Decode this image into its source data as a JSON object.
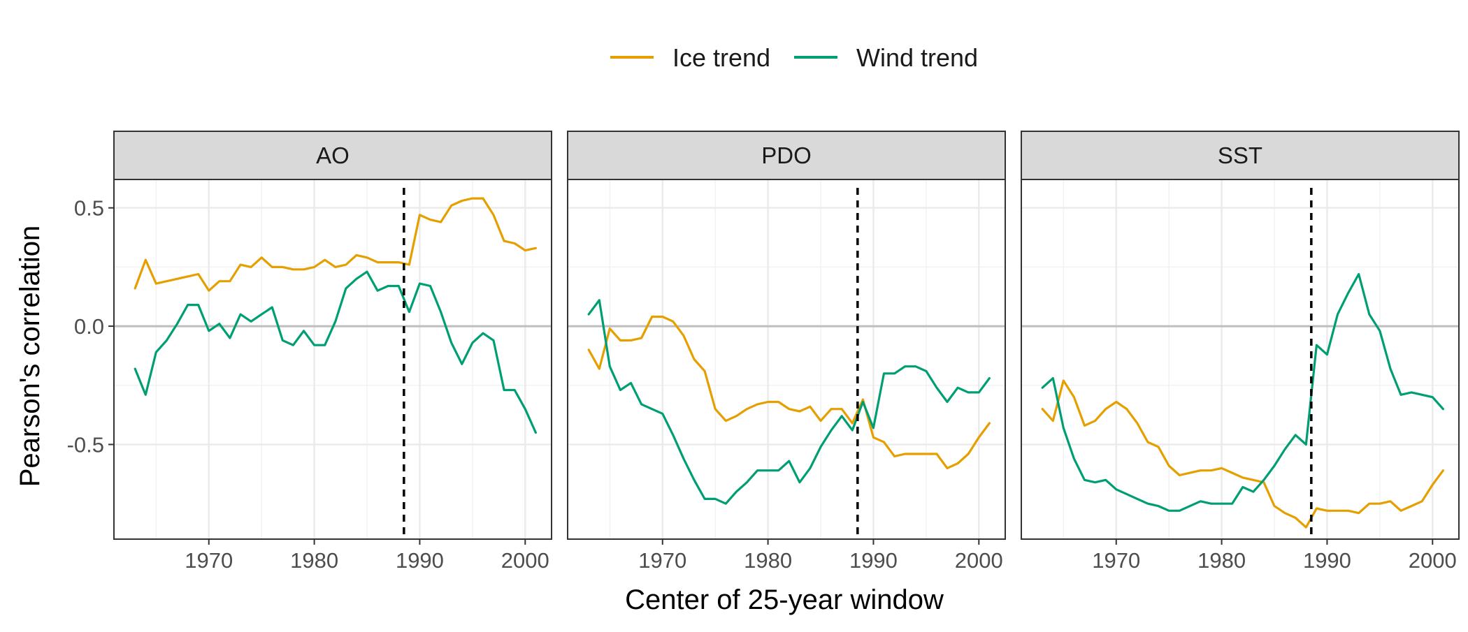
{
  "chart_data": {
    "type": "line",
    "xlabel": "Center of 25-year window",
    "ylabel": "Pearson's correlation",
    "xlim": [
      1961,
      2002.5
    ],
    "ylim": [
      -0.9,
      0.62
    ],
    "x_ticks": [
      1970,
      1980,
      1990,
      2000
    ],
    "x_tick_labels": [
      "1970",
      "1980",
      "1990",
      "2000"
    ],
    "y_ticks": [
      0.5,
      0.0,
      -0.5
    ],
    "y_tick_labels": [
      "0.5",
      "0.0",
      "-0.5"
    ],
    "reference_line_y": 0.0,
    "vertical_marker_x": 1988.5,
    "grid": true,
    "legend_position": "top",
    "legend": [
      {
        "name": "Ice trend",
        "color": "#E69F00"
      },
      {
        "name": "Wind trend",
        "color": "#009E73"
      }
    ],
    "panels": [
      {
        "title": "AO",
        "series": [
          {
            "name": "Ice trend",
            "color": "#E69F00",
            "x": [
              1963,
              1964,
              1965,
              1966,
              1967,
              1968,
              1969,
              1970,
              1971,
              1972,
              1973,
              1974,
              1975,
              1976,
              1977,
              1978,
              1979,
              1980,
              1981,
              1982,
              1983,
              1984,
              1985,
              1986,
              1987,
              1988,
              1989,
              1990,
              1991,
              1992,
              1993,
              1994,
              1995,
              1996,
              1997,
              1998,
              1999,
              2000,
              2001
            ],
            "y": [
              0.16,
              0.28,
              0.18,
              0.19,
              0.2,
              0.21,
              0.22,
              0.15,
              0.19,
              0.19,
              0.26,
              0.25,
              0.29,
              0.25,
              0.25,
              0.24,
              0.24,
              0.25,
              0.28,
              0.25,
              0.26,
              0.3,
              0.29,
              0.27,
              0.27,
              0.27,
              0.26,
              0.47,
              0.45,
              0.44,
              0.51,
              0.53,
              0.54,
              0.54,
              0.47,
              0.36,
              0.35,
              0.32,
              0.33
            ]
          },
          {
            "name": "Wind trend",
            "color": "#009E73",
            "x": [
              1963,
              1964,
              1965,
              1966,
              1967,
              1968,
              1969,
              1970,
              1971,
              1972,
              1973,
              1974,
              1975,
              1976,
              1977,
              1978,
              1979,
              1980,
              1981,
              1982,
              1983,
              1984,
              1985,
              1986,
              1987,
              1988,
              1989,
              1990,
              1991,
              1992,
              1993,
              1994,
              1995,
              1996,
              1997,
              1998,
              1999,
              2000,
              2001
            ],
            "y": [
              -0.18,
              -0.29,
              -0.11,
              -0.06,
              0.01,
              0.09,
              0.09,
              -0.02,
              0.01,
              -0.05,
              0.05,
              0.02,
              0.05,
              0.08,
              -0.06,
              -0.08,
              -0.02,
              -0.08,
              -0.08,
              0.02,
              0.16,
              0.2,
              0.23,
              0.15,
              0.17,
              0.17,
              0.06,
              0.18,
              0.17,
              0.06,
              -0.07,
              -0.16,
              -0.07,
              -0.03,
              -0.06,
              -0.27,
              -0.27,
              -0.35,
              -0.45
            ]
          }
        ]
      },
      {
        "title": "PDO",
        "series": [
          {
            "name": "Ice trend",
            "color": "#E69F00",
            "x": [
              1963,
              1964,
              1965,
              1966,
              1967,
              1968,
              1969,
              1970,
              1971,
              1972,
              1973,
              1974,
              1975,
              1976,
              1977,
              1978,
              1979,
              1980,
              1981,
              1982,
              1983,
              1984,
              1985,
              1986,
              1987,
              1988,
              1989,
              1990,
              1991,
              1992,
              1993,
              1994,
              1995,
              1996,
              1997,
              1998,
              1999,
              2000,
              2001
            ],
            "y": [
              -0.1,
              -0.18,
              -0.01,
              -0.06,
              -0.06,
              -0.05,
              0.04,
              0.04,
              0.02,
              -0.04,
              -0.14,
              -0.19,
              -0.35,
              -0.4,
              -0.38,
              -0.35,
              -0.33,
              -0.32,
              -0.32,
              -0.35,
              -0.36,
              -0.34,
              -0.4,
              -0.35,
              -0.35,
              -0.41,
              -0.31,
              -0.47,
              -0.49,
              -0.55,
              -0.54,
              -0.54,
              -0.54,
              -0.54,
              -0.6,
              -0.58,
              -0.54,
              -0.47,
              -0.41
            ]
          },
          {
            "name": "Wind trend",
            "color": "#009E73",
            "x": [
              1963,
              1964,
              1965,
              1966,
              1967,
              1968,
              1969,
              1970,
              1971,
              1972,
              1973,
              1974,
              1975,
              1976,
              1977,
              1978,
              1979,
              1980,
              1981,
              1982,
              1983,
              1984,
              1985,
              1986,
              1987,
              1988,
              1989,
              1990,
              1991,
              1992,
              1993,
              1994,
              1995,
              1996,
              1997,
              1998,
              1999,
              2000,
              2001
            ],
            "y": [
              0.05,
              0.11,
              -0.17,
              -0.27,
              -0.24,
              -0.33,
              -0.35,
              -0.37,
              -0.46,
              -0.56,
              -0.65,
              -0.73,
              -0.73,
              -0.75,
              -0.7,
              -0.66,
              -0.61,
              -0.61,
              -0.61,
              -0.57,
              -0.66,
              -0.6,
              -0.51,
              -0.44,
              -0.38,
              -0.44,
              -0.32,
              -0.43,
              -0.2,
              -0.2,
              -0.17,
              -0.17,
              -0.19,
              -0.26,
              -0.32,
              -0.26,
              -0.28,
              -0.28,
              -0.22
            ]
          }
        ]
      },
      {
        "title": "SST",
        "series": [
          {
            "name": "Ice trend",
            "color": "#E69F00",
            "x": [
              1963,
              1964,
              1965,
              1966,
              1967,
              1968,
              1969,
              1970,
              1971,
              1972,
              1973,
              1974,
              1975,
              1976,
              1977,
              1978,
              1979,
              1980,
              1981,
              1982,
              1983,
              1984,
              1985,
              1986,
              1987,
              1988,
              1989,
              1990,
              1991,
              1992,
              1993,
              1994,
              1995,
              1996,
              1997,
              1998,
              1999,
              2000,
              2001
            ],
            "y": [
              -0.35,
              -0.4,
              -0.23,
              -0.3,
              -0.42,
              -0.4,
              -0.35,
              -0.32,
              -0.35,
              -0.41,
              -0.49,
              -0.51,
              -0.59,
              -0.63,
              -0.62,
              -0.61,
              -0.61,
              -0.6,
              -0.62,
              -0.64,
              -0.65,
              -0.66,
              -0.76,
              -0.79,
              -0.81,
              -0.85,
              -0.77,
              -0.78,
              -0.78,
              -0.78,
              -0.79,
              -0.75,
              -0.75,
              -0.74,
              -0.78,
              -0.76,
              -0.74,
              -0.67,
              -0.61
            ]
          },
          {
            "name": "Wind trend",
            "color": "#009E73",
            "x": [
              1963,
              1964,
              1965,
              1966,
              1967,
              1968,
              1969,
              1970,
              1971,
              1972,
              1973,
              1974,
              1975,
              1976,
              1977,
              1978,
              1979,
              1980,
              1981,
              1982,
              1983,
              1984,
              1985,
              1986,
              1987,
              1988,
              1989,
              1990,
              1991,
              1992,
              1993,
              1994,
              1995,
              1996,
              1997,
              1998,
              1999,
              2000,
              2001
            ],
            "y": [
              -0.26,
              -0.22,
              -0.43,
              -0.56,
              -0.65,
              -0.66,
              -0.65,
              -0.69,
              -0.71,
              -0.73,
              -0.75,
              -0.76,
              -0.78,
              -0.78,
              -0.76,
              -0.74,
              -0.75,
              -0.75,
              -0.75,
              -0.68,
              -0.7,
              -0.65,
              -0.59,
              -0.52,
              -0.46,
              -0.5,
              -0.08,
              -0.12,
              0.05,
              0.14,
              0.22,
              0.05,
              -0.02,
              -0.18,
              -0.29,
              -0.28,
              -0.29,
              -0.3,
              -0.35
            ]
          }
        ]
      }
    ]
  }
}
